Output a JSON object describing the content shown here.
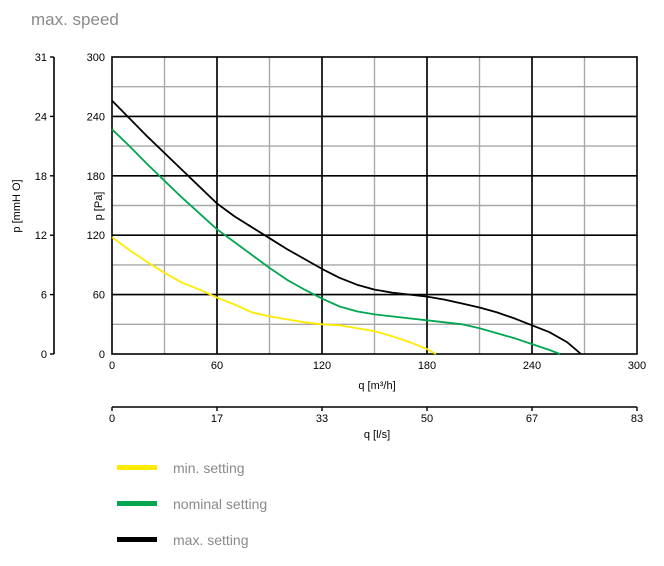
{
  "chart_data": {
    "type": "line",
    "title": "max. speed",
    "xlabel": "q [m³/h]",
    "ylabel": "p [Pa]",
    "x2label": "q [l/s]",
    "y2label": "p [mmH O]",
    "xlim": [
      0,
      300
    ],
    "ylim": [
      0,
      300
    ],
    "xticks": [
      "0",
      "60",
      "120",
      "180",
      "240",
      "300"
    ],
    "yticks": [
      "0",
      "60",
      "120",
      "180",
      "240",
      "300"
    ],
    "x2ticks": [
      "0",
      "17",
      "33",
      "50",
      "67",
      "83"
    ],
    "y2ticks": [
      "0",
      "6",
      "12",
      "18",
      "24",
      "31"
    ],
    "grid": true,
    "legend_position": "bottom-left",
    "series": [
      {
        "name": "min. setting",
        "color": "#ffeb00",
        "x": [
          0,
          10,
          20,
          30,
          40,
          50,
          60,
          70,
          80,
          90,
          100,
          110,
          120,
          130,
          140,
          150,
          160,
          170,
          180,
          185
        ],
        "y": [
          118,
          105,
          93,
          82,
          72,
          65,
          57,
          50,
          42,
          38,
          35,
          32,
          30,
          29,
          26,
          23,
          18,
          12,
          5,
          0
        ]
      },
      {
        "name": "nominal setting",
        "color": "#00a650",
        "x": [
          0,
          10,
          20,
          30,
          40,
          50,
          60,
          70,
          80,
          90,
          100,
          110,
          120,
          130,
          140,
          150,
          160,
          170,
          180,
          190,
          200,
          210,
          220,
          230,
          240,
          250,
          256
        ],
        "y": [
          227,
          210,
          192,
          175,
          158,
          142,
          126,
          113,
          100,
          87,
          75,
          65,
          56,
          48,
          43,
          40,
          38,
          36,
          34,
          32,
          30,
          26,
          21,
          16,
          10,
          4,
          0
        ]
      },
      {
        "name": "max. setting",
        "color": "#000000",
        "x": [
          0,
          10,
          20,
          30,
          40,
          50,
          60,
          70,
          80,
          90,
          100,
          110,
          120,
          130,
          140,
          150,
          160,
          170,
          180,
          190,
          200,
          210,
          220,
          230,
          240,
          250,
          260,
          268
        ],
        "y": [
          256,
          238,
          220,
          203,
          186,
          169,
          152,
          139,
          128,
          117,
          106,
          96,
          86,
          77,
          70,
          65,
          62,
          60,
          58,
          55,
          51,
          47,
          42,
          36,
          29,
          22,
          12,
          0
        ]
      }
    ]
  }
}
